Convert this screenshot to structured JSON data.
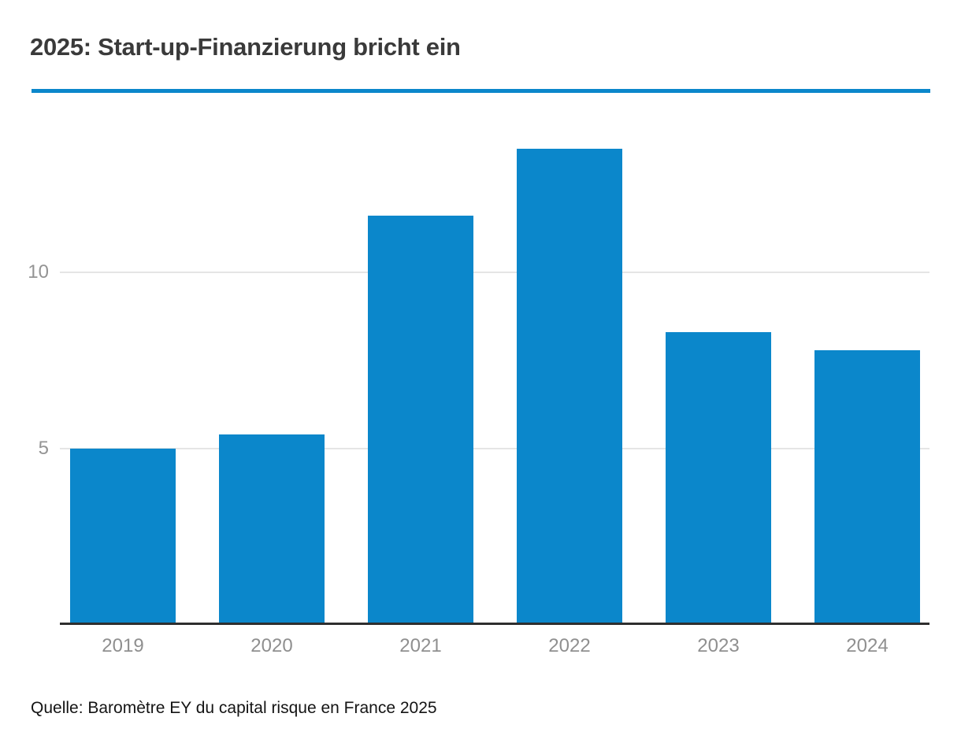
{
  "header": {
    "title": "2025: Start-up-Finanzierung bricht ein"
  },
  "footer": {
    "source": "Quelle: Baromètre EY du capital risque en France 2025"
  },
  "colors": {
    "background": "#ffffff",
    "accent_rule": "#0b87cb",
    "bar": "#0b87cb",
    "title_text": "#3a3a3a",
    "axis_label": "#8f8f8f",
    "y_tick_label": "#949494",
    "gridline": "#e5e5e5",
    "axis_baseline": "#2e2e2e",
    "source_text": "#141414"
  },
  "chart_data": {
    "type": "bar",
    "title": "2025: Start-up-Finanzierung bricht ein",
    "categories": [
      "2019",
      "2020",
      "2021",
      "2022",
      "2023",
      "2024"
    ],
    "values": [
      5.0,
      5.4,
      11.6,
      13.5,
      8.3,
      7.8
    ],
    "xlabel": "",
    "ylabel": "",
    "y_ticks": [
      5,
      10
    ],
    "ylim": [
      0,
      14.8
    ],
    "grid": "horizontal-only",
    "legend": "none",
    "bar_color": "#0b87cb",
    "source": "Quelle: Baromètre EY du capital risque en France 2025"
  }
}
